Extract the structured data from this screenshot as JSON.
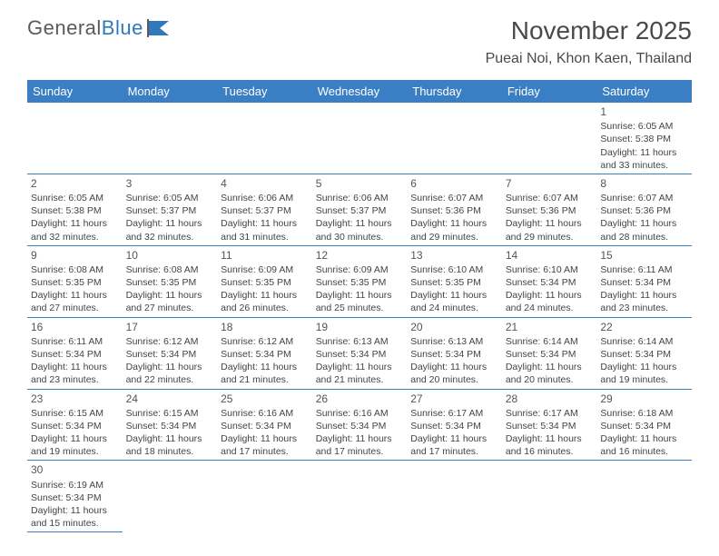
{
  "logo": {
    "text1": "General",
    "text2": "Blue"
  },
  "title": "November 2025",
  "location": "Pueai Noi, Khon Kaen, Thailand",
  "colors": {
    "header_bg": "#3a7fc4",
    "header_text": "#ffffff",
    "text": "#444444",
    "logo_gray": "#5a5a5a",
    "logo_blue": "#2f78bd"
  },
  "weekdays": [
    "Sunday",
    "Monday",
    "Tuesday",
    "Wednesday",
    "Thursday",
    "Friday",
    "Saturday"
  ],
  "weeks": [
    [
      null,
      null,
      null,
      null,
      null,
      null,
      {
        "n": "1",
        "sr": "6:05 AM",
        "ss": "5:38 PM",
        "dl": "11 hours and 33 minutes."
      }
    ],
    [
      {
        "n": "2",
        "sr": "6:05 AM",
        "ss": "5:38 PM",
        "dl": "11 hours and 32 minutes."
      },
      {
        "n": "3",
        "sr": "6:05 AM",
        "ss": "5:37 PM",
        "dl": "11 hours and 32 minutes."
      },
      {
        "n": "4",
        "sr": "6:06 AM",
        "ss": "5:37 PM",
        "dl": "11 hours and 31 minutes."
      },
      {
        "n": "5",
        "sr": "6:06 AM",
        "ss": "5:37 PM",
        "dl": "11 hours and 30 minutes."
      },
      {
        "n": "6",
        "sr": "6:07 AM",
        "ss": "5:36 PM",
        "dl": "11 hours and 29 minutes."
      },
      {
        "n": "7",
        "sr": "6:07 AM",
        "ss": "5:36 PM",
        "dl": "11 hours and 29 minutes."
      },
      {
        "n": "8",
        "sr": "6:07 AM",
        "ss": "5:36 PM",
        "dl": "11 hours and 28 minutes."
      }
    ],
    [
      {
        "n": "9",
        "sr": "6:08 AM",
        "ss": "5:35 PM",
        "dl": "11 hours and 27 minutes."
      },
      {
        "n": "10",
        "sr": "6:08 AM",
        "ss": "5:35 PM",
        "dl": "11 hours and 27 minutes."
      },
      {
        "n": "11",
        "sr": "6:09 AM",
        "ss": "5:35 PM",
        "dl": "11 hours and 26 minutes."
      },
      {
        "n": "12",
        "sr": "6:09 AM",
        "ss": "5:35 PM",
        "dl": "11 hours and 25 minutes."
      },
      {
        "n": "13",
        "sr": "6:10 AM",
        "ss": "5:35 PM",
        "dl": "11 hours and 24 minutes."
      },
      {
        "n": "14",
        "sr": "6:10 AM",
        "ss": "5:34 PM",
        "dl": "11 hours and 24 minutes."
      },
      {
        "n": "15",
        "sr": "6:11 AM",
        "ss": "5:34 PM",
        "dl": "11 hours and 23 minutes."
      }
    ],
    [
      {
        "n": "16",
        "sr": "6:11 AM",
        "ss": "5:34 PM",
        "dl": "11 hours and 23 minutes."
      },
      {
        "n": "17",
        "sr": "6:12 AM",
        "ss": "5:34 PM",
        "dl": "11 hours and 22 minutes."
      },
      {
        "n": "18",
        "sr": "6:12 AM",
        "ss": "5:34 PM",
        "dl": "11 hours and 21 minutes."
      },
      {
        "n": "19",
        "sr": "6:13 AM",
        "ss": "5:34 PM",
        "dl": "11 hours and 21 minutes."
      },
      {
        "n": "20",
        "sr": "6:13 AM",
        "ss": "5:34 PM",
        "dl": "11 hours and 20 minutes."
      },
      {
        "n": "21",
        "sr": "6:14 AM",
        "ss": "5:34 PM",
        "dl": "11 hours and 20 minutes."
      },
      {
        "n": "22",
        "sr": "6:14 AM",
        "ss": "5:34 PM",
        "dl": "11 hours and 19 minutes."
      }
    ],
    [
      {
        "n": "23",
        "sr": "6:15 AM",
        "ss": "5:34 PM",
        "dl": "11 hours and 19 minutes."
      },
      {
        "n": "24",
        "sr": "6:15 AM",
        "ss": "5:34 PM",
        "dl": "11 hours and 18 minutes."
      },
      {
        "n": "25",
        "sr": "6:16 AM",
        "ss": "5:34 PM",
        "dl": "11 hours and 17 minutes."
      },
      {
        "n": "26",
        "sr": "6:16 AM",
        "ss": "5:34 PM",
        "dl": "11 hours and 17 minutes."
      },
      {
        "n": "27",
        "sr": "6:17 AM",
        "ss": "5:34 PM",
        "dl": "11 hours and 17 minutes."
      },
      {
        "n": "28",
        "sr": "6:17 AM",
        "ss": "5:34 PM",
        "dl": "11 hours and 16 minutes."
      },
      {
        "n": "29",
        "sr": "6:18 AM",
        "ss": "5:34 PM",
        "dl": "11 hours and 16 minutes."
      }
    ],
    [
      {
        "n": "30",
        "sr": "6:19 AM",
        "ss": "5:34 PM",
        "dl": "11 hours and 15 minutes."
      },
      null,
      null,
      null,
      null,
      null,
      null
    ]
  ],
  "labels": {
    "sunrise": "Sunrise: ",
    "sunset": "Sunset: ",
    "daylight": "Daylight: "
  }
}
